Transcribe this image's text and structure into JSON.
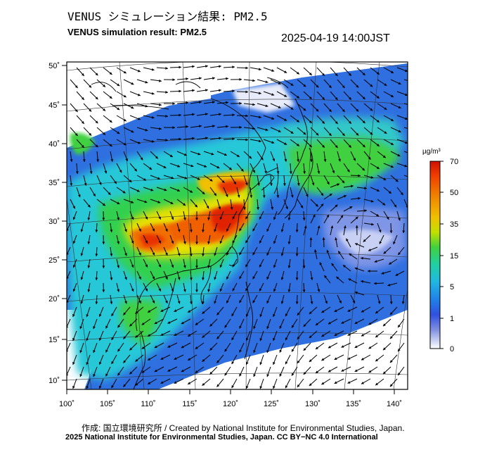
{
  "title_jp": "VENUS シミュレーション結果: PM2.5",
  "title_en": "VENUS simulation result: PM2.5",
  "timestamp": "2025-04-19 14:00JST",
  "x_ticks": [
    "100˚",
    "105˚",
    "110˚",
    "115˚",
    "120˚",
    "125˚",
    "130˚",
    "135˚",
    "140˚"
  ],
  "y_ticks": [
    "50˚",
    "45˚",
    "40˚",
    "35˚",
    "30˚",
    "25˚",
    "20˚",
    "15˚",
    "10˚"
  ],
  "colorbar": {
    "unit": "µg/m³",
    "labels": [
      "70",
      "50",
      "35",
      "15",
      "5",
      "1",
      "0"
    ],
    "colors": [
      "#e02000",
      "#f06000",
      "#f0a000",
      "#e8e000",
      "#80e040",
      "#20d060",
      "#30d0c0",
      "#30a0e8",
      "#3060e0",
      "#7080e0",
      "#c0c8f0",
      "#ffffff"
    ]
  },
  "credit": "作成: 国立環境研究所 / Created by National Institute for Environmental Studies, Japan.",
  "copyright": "2025 National Institute for Environmental Studies, Japan. CC BY−NC 4.0 International"
}
